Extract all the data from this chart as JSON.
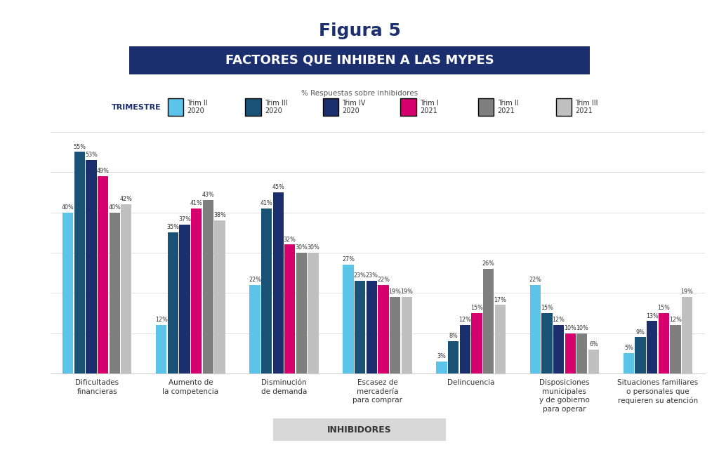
{
  "title": "Figura 5",
  "subtitle": "FACTORES QUE INHIBEN A LAS MYPES",
  "subtitle_note": "% Respuestas sobre inhibidores",
  "xlabel_box": "INHIBIDORES",
  "legend_label": "TRIMESTRE",
  "categories": [
    "Dificultades\nfinancieras",
    "Aumento de\nla competencia",
    "Disminución\nde demanda",
    "Escasez de\nmercadería\npara comprar",
    "Delincuencia",
    "Disposiciones\nmunicipales\ny de gobierno\npara operar",
    "Situaciones familiares\no personales que\nrequieren su atención"
  ],
  "series": [
    {
      "label": "Trim II\n2020",
      "color": "#5BC4E8",
      "values": [
        40,
        12,
        22,
        27,
        3,
        22,
        5
      ]
    },
    {
      "label": "Trim III\n2020",
      "color": "#1A5276",
      "values": [
        55,
        35,
        41,
        23,
        8,
        15,
        9
      ]
    },
    {
      "label": "Trim IV\n2020",
      "color": "#1B2F6E",
      "values": [
        53,
        37,
        45,
        23,
        12,
        12,
        13
      ]
    },
    {
      "label": "Trim I\n2021",
      "color": "#D5006D",
      "values": [
        49,
        41,
        32,
        22,
        15,
        10,
        15
      ]
    },
    {
      "label": "Trim II\n2021",
      "color": "#7F7F7F",
      "values": [
        40,
        43,
        30,
        19,
        26,
        10,
        12
      ]
    },
    {
      "label": "Trim III\n2021",
      "color": "#C0C0C0",
      "values": [
        42,
        38,
        30,
        19,
        17,
        6,
        19
      ]
    }
  ],
  "background_color": "#FFFFFF",
  "subtitle_bg_color": "#1B2F6E",
  "subtitle_text_color": "#FFFFFF",
  "ylim": [
    0,
    62
  ],
  "grid_color": "#E0E0E0"
}
